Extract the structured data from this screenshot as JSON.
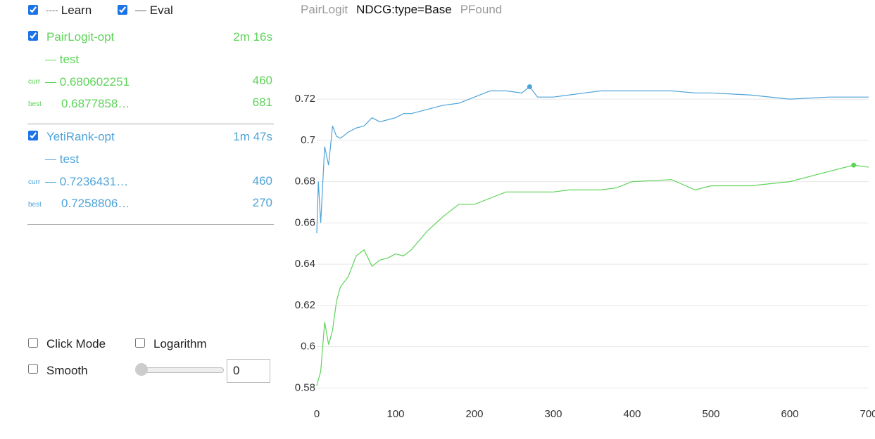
{
  "legend": {
    "learn": "Learn",
    "eval": "Eval"
  },
  "runs": [
    {
      "name": "PairLogit-opt",
      "time": "2m 16s",
      "metric": "test",
      "curr": {
        "label": "curr",
        "value": "0.680602251",
        "iteration": 460
      },
      "best": {
        "label": "best",
        "value": "0.6877858…",
        "iteration": 681
      }
    },
    {
      "name": "YetiRank-opt",
      "time": "1m 47s",
      "metric": "test",
      "curr": {
        "label": "curr",
        "value": "0.7236431…",
        "iteration": 460
      },
      "best": {
        "label": "best",
        "value": "0.7258806…",
        "iteration": 270
      }
    }
  ],
  "controls": {
    "click_mode": "Click Mode",
    "logarithm": "Logarithm",
    "smooth": "Smooth",
    "smooth_value": 0
  },
  "tabs": [
    "PairLogit",
    "NDCG:type=Base",
    "PFound"
  ],
  "active_tab": 1,
  "chart_data": {
    "type": "line",
    "x": [
      0,
      2,
      5,
      10,
      15,
      20,
      25,
      30,
      40,
      50,
      60,
      70,
      80,
      90,
      100,
      110,
      120,
      140,
      160,
      180,
      200,
      220,
      240,
      260,
      270,
      280,
      300,
      320,
      340,
      360,
      380,
      400,
      450,
      480,
      500,
      550,
      600,
      650,
      681,
      700
    ],
    "series": [
      {
        "color": "#5fd35a",
        "values": [
          0.581,
          0.584,
          0.588,
          0.612,
          0.601,
          0.608,
          0.622,
          0.629,
          0.634,
          0.644,
          0.647,
          0.639,
          0.642,
          0.643,
          0.645,
          0.644,
          0.647,
          0.656,
          0.663,
          0.669,
          0.669,
          0.672,
          0.675,
          0.675,
          0.675,
          0.675,
          0.675,
          0.676,
          0.676,
          0.676,
          0.677,
          0.68,
          0.681,
          0.676,
          0.678,
          0.678,
          0.68,
          0.685,
          0.688,
          0.687
        ]
      },
      {
        "color": "#4ea3d8",
        "values": [
          0.655,
          0.68,
          0.66,
          0.697,
          0.688,
          0.707,
          0.702,
          0.701,
          0.704,
          0.706,
          0.707,
          0.711,
          0.709,
          0.71,
          0.711,
          0.713,
          0.713,
          0.715,
          0.717,
          0.718,
          0.721,
          0.724,
          0.724,
          0.723,
          0.726,
          0.721,
          0.721,
          0.722,
          0.723,
          0.724,
          0.724,
          0.724,
          0.724,
          0.723,
          0.723,
          0.722,
          0.72,
          0.721,
          0.721,
          0.721
        ]
      }
    ],
    "xlim": [
      0,
      700
    ],
    "xticks": [
      0,
      100,
      200,
      300,
      400,
      500,
      600,
      700
    ],
    "ylim": [
      0.574,
      0.734
    ],
    "yticks": [
      0.58,
      0.6,
      0.62,
      0.64,
      0.66,
      0.68,
      0.7,
      0.72
    ],
    "grid": true
  }
}
